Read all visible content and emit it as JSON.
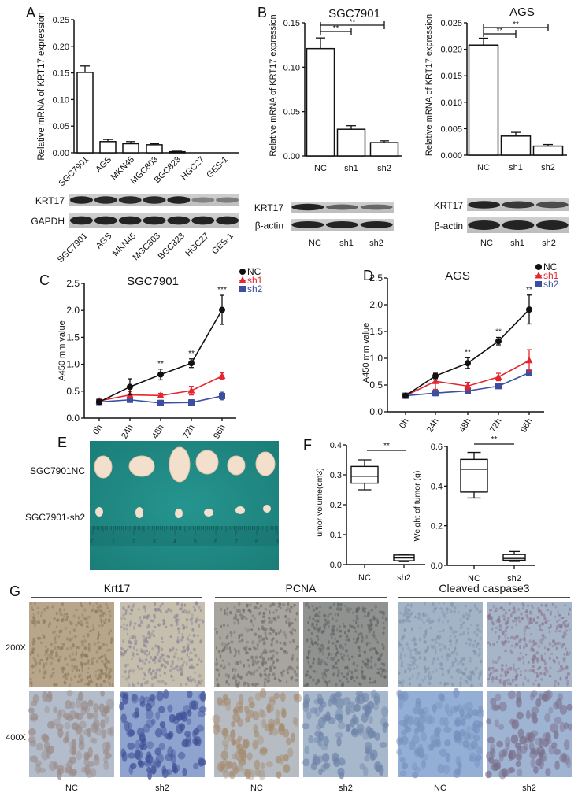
{
  "panel_labels": {
    "A": "A",
    "B": "B",
    "C": "C",
    "D": "D",
    "E": "E",
    "F": "F",
    "G": "G"
  },
  "chart_data": [
    {
      "id": "A",
      "type": "bar",
      "title": "",
      "ylabel": "Relative  mRNA of KRT17 expression",
      "xlabel": "",
      "categories": [
        "SGC7901",
        "AGS",
        "MKN45",
        "MGC803",
        "BGC823",
        "HGC27",
        "GES-1"
      ],
      "values": [
        0.151,
        0.021,
        0.017,
        0.015,
        0.002,
        0.0,
        0.0
      ],
      "errors": [
        0.012,
        0.004,
        0.004,
        0.002,
        0.001,
        0,
        0
      ],
      "ylim": [
        0,
        0.25
      ],
      "yticks": [
        "0.00",
        "0.05",
        "0.10",
        "0.15",
        "0.20",
        "0.25"
      ],
      "significance": []
    },
    {
      "id": "B-SGC7901",
      "type": "bar",
      "title": "SGC7901",
      "ylabel": "Relative  mRNA of KRT17 expression",
      "xlabel": "",
      "categories": [
        "NC",
        "sh1",
        "sh2"
      ],
      "values": [
        0.121,
        0.03,
        0.015
      ],
      "errors": [
        0.012,
        0.004,
        0.002
      ],
      "ylim": [
        0,
        0.15
      ],
      "yticks": [
        "0.00",
        "0.05",
        "0.10",
        "0.15"
      ],
      "significance": [
        {
          "from": 0,
          "to": 1,
          "label": "**"
        },
        {
          "from": 0,
          "to": 2,
          "label": "**"
        }
      ]
    },
    {
      "id": "B-AGS",
      "type": "bar",
      "title": "AGS",
      "ylabel": "Relative  mRNA of KRT17 expression",
      "xlabel": "",
      "categories": [
        "NC",
        "sh1",
        "sh2"
      ],
      "values": [
        0.0208,
        0.0036,
        0.0017
      ],
      "errors": [
        0.0013,
        0.0007,
        0.0003
      ],
      "ylim": [
        0,
        0.025
      ],
      "yticks": [
        "0.000",
        "0.005",
        "0.010",
        "0.015",
        "0.020",
        "0.025"
      ],
      "significance": [
        {
          "from": 0,
          "to": 1,
          "label": "**"
        },
        {
          "from": 0,
          "to": 2,
          "label": "**"
        }
      ]
    },
    {
      "id": "C",
      "type": "line",
      "title": "SGC7901",
      "ylabel": "A450 mm value",
      "xlabel": "",
      "x": [
        "0h",
        "24h",
        "48h",
        "72h",
        "96h"
      ],
      "ylim": [
        0,
        2.5
      ],
      "yticks": [
        "0.0",
        "0.5",
        "1.0",
        "1.5",
        "2.0",
        "2.5"
      ],
      "legend_position": "top-right",
      "series": [
        {
          "name": "NC",
          "color": "#111111",
          "marker": "circle",
          "values": [
            0.3,
            0.58,
            0.81,
            1.02,
            2.01
          ],
          "errors": [
            0.04,
            0.15,
            0.1,
            0.08,
            0.27
          ]
        },
        {
          "name": "sh1",
          "color": "#e3262f",
          "marker": "triangle",
          "values": [
            0.32,
            0.43,
            0.42,
            0.51,
            0.78
          ],
          "errors": [
            0.05,
            0.06,
            0.04,
            0.08,
            0.06
          ]
        },
        {
          "name": "sh2",
          "color": "#3b4ea0",
          "marker": "square",
          "values": [
            0.3,
            0.34,
            0.28,
            0.29,
            0.41
          ],
          "errors": [
            0.03,
            0.04,
            0.05,
            0.05,
            0.07
          ]
        }
      ],
      "annotations": [
        "",
        "",
        "**",
        "**",
        "***"
      ]
    },
    {
      "id": "D",
      "type": "line",
      "title": "AGS",
      "ylabel": "A450 mm value",
      "xlabel": "",
      "x": [
        "0h",
        "24h",
        "48h",
        "72h",
        "96h"
      ],
      "ylim": [
        0,
        2.5
      ],
      "yticks": [
        "0.0",
        "0.5",
        "1.0",
        "1.5",
        "2.0",
        "2.5"
      ],
      "legend_position": "top-right",
      "series": [
        {
          "name": "NC",
          "color": "#111111",
          "marker": "circle",
          "values": [
            0.3,
            0.67,
            0.91,
            1.32,
            1.91
          ],
          "errors": [
            0.03,
            0.05,
            0.1,
            0.07,
            0.27
          ]
        },
        {
          "name": "sh1",
          "color": "#e3262f",
          "marker": "triangle",
          "values": [
            0.3,
            0.57,
            0.48,
            0.65,
            0.96
          ],
          "errors": [
            0.03,
            0.15,
            0.07,
            0.07,
            0.2
          ]
        },
        {
          "name": "sh2",
          "color": "#3b4ea0",
          "marker": "square",
          "values": [
            0.3,
            0.35,
            0.39,
            0.48,
            0.73
          ],
          "errors": [
            0.04,
            0.05,
            0.03,
            0.04,
            0.05
          ]
        }
      ],
      "annotations": [
        "",
        "",
        "**",
        "**",
        "**"
      ]
    },
    {
      "id": "F-volume",
      "type": "box",
      "ylabel": "Tumor volume(cm3)",
      "xlabel": "",
      "categories": [
        "NC",
        "sh2"
      ],
      "boxes": [
        {
          "min": 0.25,
          "q1": 0.272,
          "median": 0.295,
          "q3": 0.328,
          "max": 0.35
        },
        {
          "min": 0.01,
          "q1": 0.013,
          "median": 0.022,
          "q3": 0.032,
          "max": 0.035
        }
      ],
      "ylim": [
        0,
        0.4
      ],
      "yticks": [
        "0.0",
        "0.1",
        "0.2",
        "0.3",
        "0.4"
      ],
      "significance": [
        {
          "from": 0,
          "to": 1,
          "label": "**"
        }
      ]
    },
    {
      "id": "F-weight",
      "type": "box",
      "ylabel": "Weight of tumor (g)",
      "xlabel": "",
      "categories": [
        "NC",
        "sh2"
      ],
      "boxes": [
        {
          "min": 0.34,
          "q1": 0.37,
          "median": 0.485,
          "q3": 0.535,
          "max": 0.57
        },
        {
          "min": 0.02,
          "q1": 0.026,
          "median": 0.035,
          "q3": 0.055,
          "max": 0.07
        }
      ],
      "ylim": [
        0,
        0.6
      ],
      "yticks": [
        "0.0",
        "0.2",
        "0.4",
        "0.6"
      ],
      "significance": [
        {
          "from": 0,
          "to": 1,
          "label": "**"
        }
      ]
    }
  ],
  "blots": [
    {
      "id": "A",
      "lanes": [
        "SGC7901",
        "AGS",
        "MKN45",
        "MGC803",
        "BGC823",
        "HGC27",
        "GES-1"
      ],
      "rows": [
        {
          "name": "KRT17",
          "band_intensity": [
            1,
            0.95,
            0.95,
            0.95,
            1,
            0.3,
            0.35
          ]
        },
        {
          "name": "GAPDH",
          "band_intensity": [
            1,
            1,
            1,
            1,
            1,
            1,
            1
          ]
        }
      ]
    },
    {
      "id": "B-SGC7901",
      "lanes": [
        "NC",
        "sh1",
        "sh2"
      ],
      "rows": [
        {
          "name": "KRT17",
          "band_intensity": [
            1,
            0.55,
            0.5
          ]
        },
        {
          "name": "β-actin",
          "band_intensity": [
            1,
            1,
            1
          ]
        }
      ]
    },
    {
      "id": "B-AGS",
      "lanes": [
        "NC",
        "sh1",
        "sh2"
      ],
      "rows": [
        {
          "name": "KRT17",
          "band_intensity": [
            1,
            0.85,
            0.7
          ]
        },
        {
          "name": "β-actin",
          "band_intensity": [
            1,
            1,
            1
          ]
        }
      ]
    }
  ],
  "photo_E": {
    "rows": [
      "SGC7901NC",
      "SGC7901-sh2"
    ],
    "ruler_numbers": [
      "0",
      "1",
      "2",
      "3",
      "4",
      "5",
      "6",
      "7",
      "8",
      "9"
    ],
    "colors": {
      "background": "#1f8984",
      "tumor": "#f2dfcc"
    }
  },
  "histology": {
    "stains": [
      "Krt17",
      "PCNA",
      "Cleaved caspase3"
    ],
    "magnifications": [
      "200X",
      "400X"
    ],
    "groups": [
      "NC",
      "sh2"
    ]
  }
}
